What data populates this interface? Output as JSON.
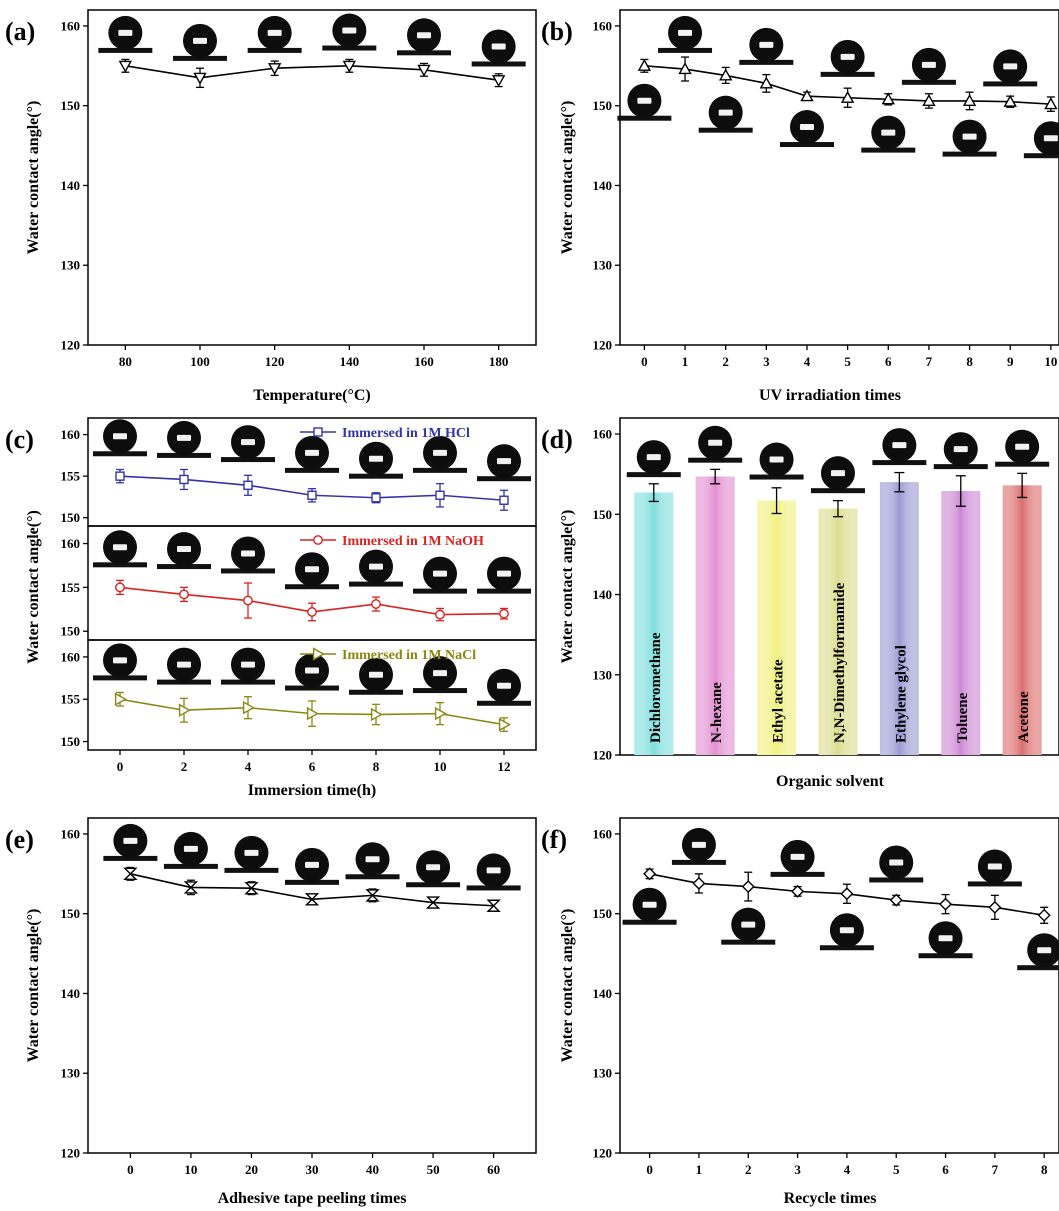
{
  "chart_data": [
    {
      "id": "a",
      "panel_label": "(a)",
      "type": "line",
      "xlabel": "Temperature(°C)",
      "ylabel": "Water contact angle(°)",
      "xlim": [
        70,
        190
      ],
      "ylim": [
        120,
        162
      ],
      "xticks": [
        80,
        100,
        120,
        140,
        160,
        180
      ],
      "yticks": [
        120,
        130,
        140,
        150,
        160
      ],
      "series": [
        {
          "marker": "tri-down",
          "color": "#000000",
          "x": [
            80,
            100,
            120,
            140,
            160,
            180
          ],
          "y": [
            155.0,
            153.5,
            154.7,
            155.0,
            154.5,
            153.2
          ],
          "err": [
            0.8,
            1.2,
            0.9,
            0.8,
            0.8,
            0.8
          ]
        }
      ],
      "droplets": [
        {
          "x": 80,
          "y": 158.5
        },
        {
          "x": 100,
          "y": 157.5
        },
        {
          "x": 120,
          "y": 158.5
        },
        {
          "x": 140,
          "y": 158.8
        },
        {
          "x": 160,
          "y": 158.2
        },
        {
          "x": 180,
          "y": 156.8
        }
      ]
    },
    {
      "id": "b",
      "panel_label": "(b)",
      "type": "line",
      "xlabel": "UV irradiation times",
      "ylabel": "Water contact angle(°)",
      "xlim": [
        -0.6,
        10.2
      ],
      "ylim": [
        120,
        162
      ],
      "xticks": [
        0,
        1,
        2,
        3,
        4,
        5,
        6,
        7,
        8,
        9,
        10
      ],
      "yticks": [
        120,
        130,
        140,
        150,
        160
      ],
      "series": [
        {
          "marker": "tri-up",
          "color": "#000000",
          "x": [
            0,
            1,
            2,
            3,
            4,
            5,
            6,
            7,
            8,
            9,
            10
          ],
          "y": [
            155.0,
            154.6,
            153.8,
            152.8,
            151.2,
            151.0,
            150.8,
            150.6,
            150.6,
            150.5,
            150.2
          ],
          "err": [
            0.8,
            1.5,
            1.0,
            1.1,
            0.5,
            1.2,
            0.7,
            0.9,
            1.1,
            0.7,
            0.9
          ]
        }
      ],
      "droplets": [
        {
          "x": 0,
          "y": 150.0
        },
        {
          "x": 1,
          "y": 158.5
        },
        {
          "x": 2,
          "y": 148.5
        },
        {
          "x": 3,
          "y": 157.0
        },
        {
          "x": 4,
          "y": 146.7
        },
        {
          "x": 5,
          "y": 155.5
        },
        {
          "x": 6,
          "y": 146.0
        },
        {
          "x": 7,
          "y": 154.5
        },
        {
          "x": 8,
          "y": 145.5
        },
        {
          "x": 9,
          "y": 154.3
        },
        {
          "x": 10,
          "y": 145.3
        }
      ]
    },
    {
      "id": "c1",
      "panel_label": "(c)",
      "type": "line",
      "ylabel": "Water contact angle(°)",
      "xlim": [
        -1,
        13
      ],
      "ylim": [
        149,
        162
      ],
      "yticks": [
        150,
        155,
        160
      ],
      "series": [
        {
          "name": "Immersed in 1M HCl",
          "marker": "square",
          "color": "#3333aa",
          "x": [
            0,
            2,
            4,
            6,
            8,
            10,
            12
          ],
          "y": [
            155.0,
            154.6,
            153.9,
            152.7,
            152.4,
            152.7,
            152.1
          ],
          "err": [
            0.8,
            1.2,
            1.2,
            0.8,
            0.6,
            1.4,
            1.2
          ]
        }
      ],
      "droplets": [
        {
          "x": 0,
          "y": 159.2
        },
        {
          "x": 2,
          "y": 159.0
        },
        {
          "x": 4,
          "y": 158.5
        },
        {
          "x": 6,
          "y": 157.2
        },
        {
          "x": 8,
          "y": 156.5
        },
        {
          "x": 10,
          "y": 157.2
        },
        {
          "x": 12,
          "y": 156.2
        }
      ]
    },
    {
      "id": "c2",
      "type": "line",
      "xlim": [
        -1,
        13
      ],
      "ylim": [
        149,
        162
      ],
      "yticks": [
        150,
        155,
        160
      ],
      "series": [
        {
          "name": "Immersed in 1M NaOH",
          "marker": "circle",
          "color": "#dd2222",
          "x": [
            0,
            2,
            4,
            6,
            8,
            10,
            12
          ],
          "y": [
            155.0,
            154.2,
            153.5,
            152.2,
            153.1,
            151.9,
            152.0
          ],
          "err": [
            0.8,
            0.8,
            2.0,
            1.0,
            0.8,
            0.7,
            0.6
          ]
        }
      ],
      "droplets": [
        {
          "x": 0,
          "y": 159.0
        },
        {
          "x": 2,
          "y": 158.8
        },
        {
          "x": 4,
          "y": 158.3
        },
        {
          "x": 6,
          "y": 156.5
        },
        {
          "x": 8,
          "y": 156.8
        },
        {
          "x": 10,
          "y": 156.0
        },
        {
          "x": 12,
          "y": 156.0
        }
      ]
    },
    {
      "id": "c3",
      "type": "line",
      "xlabel": "Immersion time(h)",
      "xlim": [
        -1,
        13
      ],
      "ylim": [
        149,
        162
      ],
      "xticks": [
        0,
        2,
        4,
        6,
        8,
        10,
        12
      ],
      "yticks": [
        150,
        155,
        160
      ],
      "series": [
        {
          "name": "Immersed in 1M NaCl",
          "marker": "tri-right",
          "color": "#888811",
          "x": [
            0,
            2,
            4,
            6,
            8,
            10,
            12
          ],
          "y": [
            155.0,
            153.7,
            154.0,
            153.3,
            153.2,
            153.3,
            152.0
          ],
          "err": [
            0.8,
            1.4,
            1.3,
            1.5,
            1.2,
            1.3,
            0.8
          ]
        }
      ],
      "droplets": [
        {
          "x": 0,
          "y": 159.0
        },
        {
          "x": 2,
          "y": 158.5
        },
        {
          "x": 4,
          "y": 158.5
        },
        {
          "x": 6,
          "y": 157.8
        },
        {
          "x": 8,
          "y": 157.3
        },
        {
          "x": 10,
          "y": 157.5
        },
        {
          "x": 12,
          "y": 156.0
        }
      ]
    },
    {
      "id": "d",
      "panel_label": "(d)",
      "type": "bar",
      "xlabel": "Organic solvent",
      "ylabel": "Water contact angle(°)",
      "ylim": [
        120,
        162
      ],
      "yticks": [
        120,
        130,
        140,
        150,
        160
      ],
      "categories": [
        "Dichloromethane",
        "N-hexane",
        "Ethyl acetate",
        "N,N-Dimethylformamide",
        "Ethylene glycol",
        "Toluene",
        "Acetone"
      ],
      "values": [
        152.7,
        154.7,
        151.7,
        150.7,
        154.0,
        152.9,
        153.6
      ],
      "err": [
        1.1,
        0.9,
        1.6,
        1.0,
        1.2,
        1.9,
        1.5
      ],
      "colors": [
        "#7fdede",
        "#e28ed0",
        "#f0f07e",
        "#dcdc8e",
        "#9a9ad4",
        "#cc88d4",
        "#dc6c6c"
      ],
      "droplets": [
        {
          "x": 0,
          "y": 156.5
        },
        {
          "x": 1,
          "y": 158.3
        },
        {
          "x": 2,
          "y": 156.2
        },
        {
          "x": 3,
          "y": 154.5
        },
        {
          "x": 4,
          "y": 158.0
        },
        {
          "x": 5,
          "y": 157.5
        },
        {
          "x": 6,
          "y": 157.8
        }
      ]
    },
    {
      "id": "e",
      "panel_label": "(e)",
      "type": "line",
      "xlabel": "Adhesive tape peeling times",
      "ylabel": "Water contact angle(°)",
      "xlim": [
        -7,
        67
      ],
      "ylim": [
        120,
        162
      ],
      "xticks": [
        0,
        10,
        20,
        30,
        40,
        50,
        60
      ],
      "yticks": [
        120,
        130,
        140,
        150,
        160
      ],
      "series": [
        {
          "marker": "hourglass",
          "color": "#000000",
          "x": [
            0,
            10,
            20,
            30,
            40,
            50,
            60
          ],
          "y": [
            155.0,
            153.3,
            153.2,
            151.8,
            152.3,
            151.4,
            151.0
          ],
          "err": [
            0.8,
            0.9,
            0.8,
            0.5,
            0.8,
            0.6,
            0.5
          ]
        }
      ],
      "droplets": [
        {
          "x": 0,
          "y": 158.5
        },
        {
          "x": 10,
          "y": 157.5
        },
        {
          "x": 20,
          "y": 157.0
        },
        {
          "x": 30,
          "y": 155.5
        },
        {
          "x": 40,
          "y": 156.2
        },
        {
          "x": 50,
          "y": 155.2
        },
        {
          "x": 60,
          "y": 154.8
        }
      ]
    },
    {
      "id": "f",
      "panel_label": "(f)",
      "type": "line",
      "xlabel": "Recycle times",
      "ylabel": "Water contact angle(°)",
      "xlim": [
        -0.6,
        8.3
      ],
      "ylim": [
        120,
        162
      ],
      "xticks": [
        0,
        1,
        2,
        3,
        4,
        5,
        6,
        7,
        8
      ],
      "yticks": [
        120,
        130,
        140,
        150,
        160
      ],
      "series": [
        {
          "marker": "diamond",
          "color": "#000000",
          "x": [
            0,
            1,
            2,
            3,
            4,
            5,
            6,
            7,
            8
          ],
          "y": [
            155.0,
            153.8,
            153.4,
            152.8,
            152.5,
            151.7,
            151.2,
            150.8,
            149.8
          ],
          "err": [
            0.6,
            1.2,
            1.8,
            0.6,
            1.2,
            0.6,
            1.2,
            1.5,
            1.0
          ]
        }
      ],
      "droplets": [
        {
          "x": 0,
          "y": 150.5
        },
        {
          "x": 1,
          "y": 158.0
        },
        {
          "x": 2,
          "y": 148.0
        },
        {
          "x": 3,
          "y": 156.5
        },
        {
          "x": 4,
          "y": 147.3
        },
        {
          "x": 5,
          "y": 155.8
        },
        {
          "x": 6,
          "y": 146.3
        },
        {
          "x": 7,
          "y": 155.3
        },
        {
          "x": 8,
          "y": 144.8
        }
      ]
    }
  ]
}
